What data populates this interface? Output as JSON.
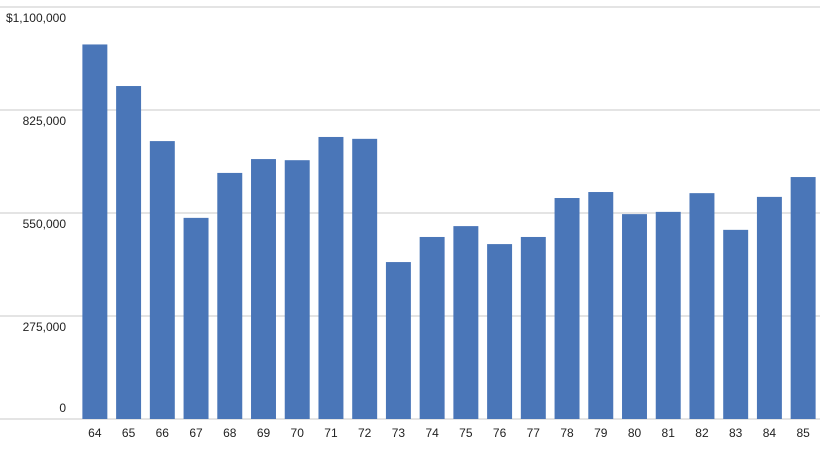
{
  "chart_data": {
    "type": "bar",
    "categories": [
      "64",
      "65",
      "66",
      "67",
      "68",
      "69",
      "70",
      "71",
      "72",
      "73",
      "74",
      "75",
      "76",
      "77",
      "78",
      "79",
      "80",
      "81",
      "82",
      "83",
      "84",
      "85"
    ],
    "values": [
      1000000,
      889000,
      742000,
      537000,
      657000,
      694000,
      691000,
      753000,
      748000,
      419000,
      486000,
      515000,
      467000,
      486000,
      590000,
      606000,
      547000,
      553000,
      603000,
      505000,
      593000,
      646000
    ],
    "color": "#4a76b8",
    "ylim": [
      0,
      1100000
    ],
    "yticks": [
      0,
      {
        "value": 275000,
        "label": "275,000"
      },
      {
        "value": 550000,
        "label": "550,000"
      },
      {
        "value": 825000,
        "label": "825,000"
      },
      {
        "value": 1100000,
        "label": "$1,100,000"
      }
    ],
    "grid": true
  }
}
